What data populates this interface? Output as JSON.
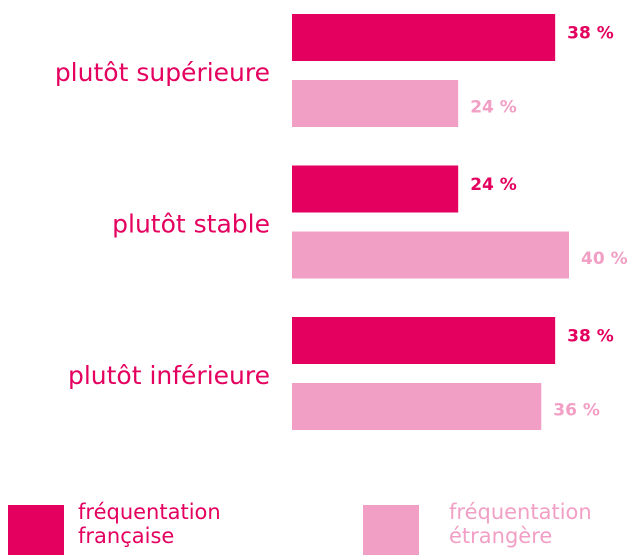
{
  "chart_data": {
    "type": "bar",
    "orientation": "horizontal",
    "categories": [
      "plutôt supérieure",
      "plutôt stable",
      "plutôt inférieure"
    ],
    "series": [
      {
        "name": "fréquentation française",
        "color": "#e4005f",
        "values": [
          38,
          24,
          38
        ],
        "value_labels": [
          "38 %",
          "24 %",
          "38 %"
        ]
      },
      {
        "name": "fréquentation étrangère",
        "color": "#f29fc5",
        "values": [
          24,
          40,
          36
        ],
        "value_labels": [
          "24 %",
          "40 %",
          "36 %"
        ]
      }
    ],
    "legend": "bottom"
  }
}
